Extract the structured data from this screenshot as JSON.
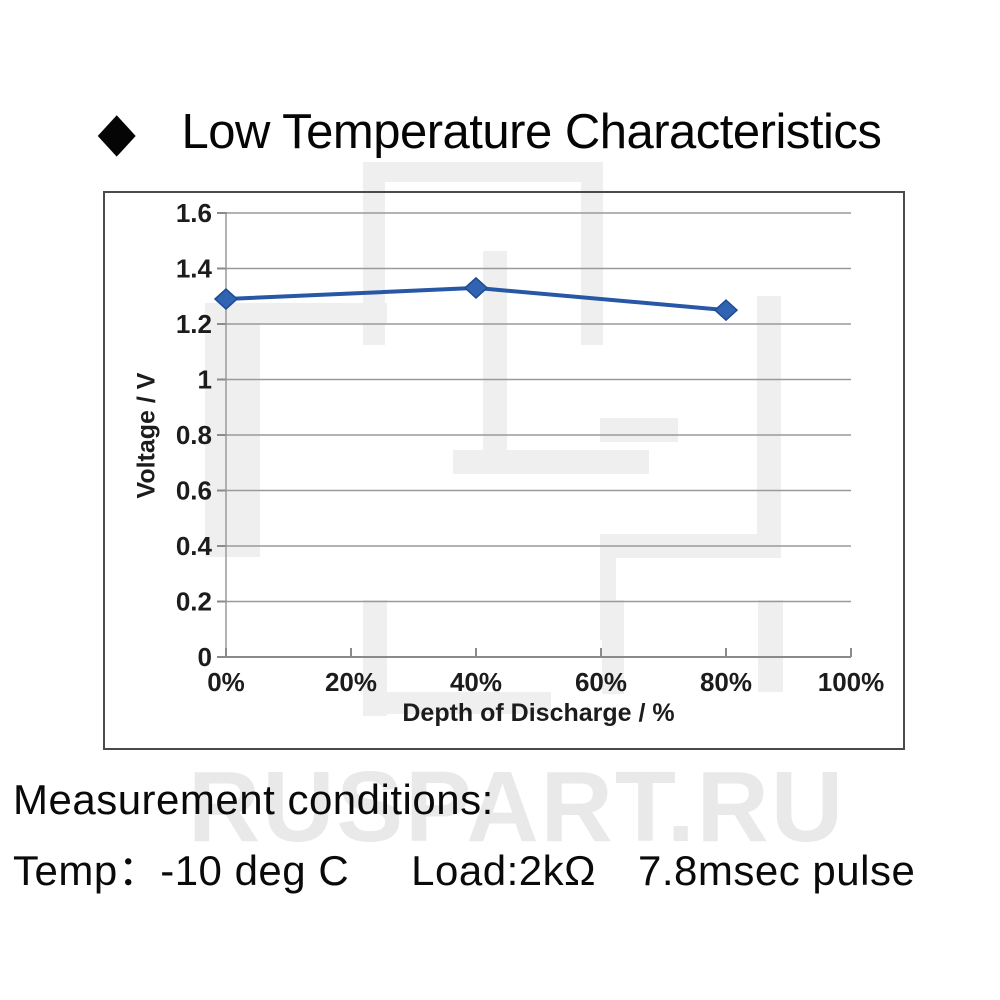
{
  "title": {
    "bullet": "◆",
    "text": "Low Temperature Characteristics"
  },
  "watermark": {
    "text": "RUSPART.RU"
  },
  "conditions": {
    "heading": "Measurement conditions:",
    "temp": "Temp：-10 deg C",
    "load": "Load:2kΩ",
    "pulse": "7.8msec pulse"
  },
  "chart_data": {
    "type": "line",
    "title": "Low Temperature Characteristics",
    "xlabel": "Depth of Discharge / %",
    "ylabel": "Voltage / V",
    "xlim": [
      0,
      100
    ],
    "ylim": [
      0,
      1.6
    ],
    "x_ticks": [
      "0%",
      "20%",
      "40%",
      "60%",
      "80%",
      "100%"
    ],
    "x_tick_values": [
      0,
      20,
      40,
      60,
      80,
      100
    ],
    "y_ticks": [
      "0",
      "0.2",
      "0.4",
      "0.6",
      "0.8",
      "1",
      "1.2",
      "1.4",
      "1.6"
    ],
    "y_tick_values": [
      0,
      0.2,
      0.4,
      0.6,
      0.8,
      1,
      1.2,
      1.4,
      1.6
    ],
    "grid": "horizontal gridlines on",
    "legend": "none",
    "grid_color": "#9a9a9a",
    "axis_color": "#8a8a8a",
    "series": [
      {
        "name": "voltage",
        "x": [
          0,
          40,
          80
        ],
        "y": [
          1.29,
          1.33,
          1.25
        ],
        "color": "#2857a6",
        "marker": "diamond",
        "marker_fill": "#3063b2",
        "marker_stroke": "#1c4b94"
      }
    ]
  }
}
